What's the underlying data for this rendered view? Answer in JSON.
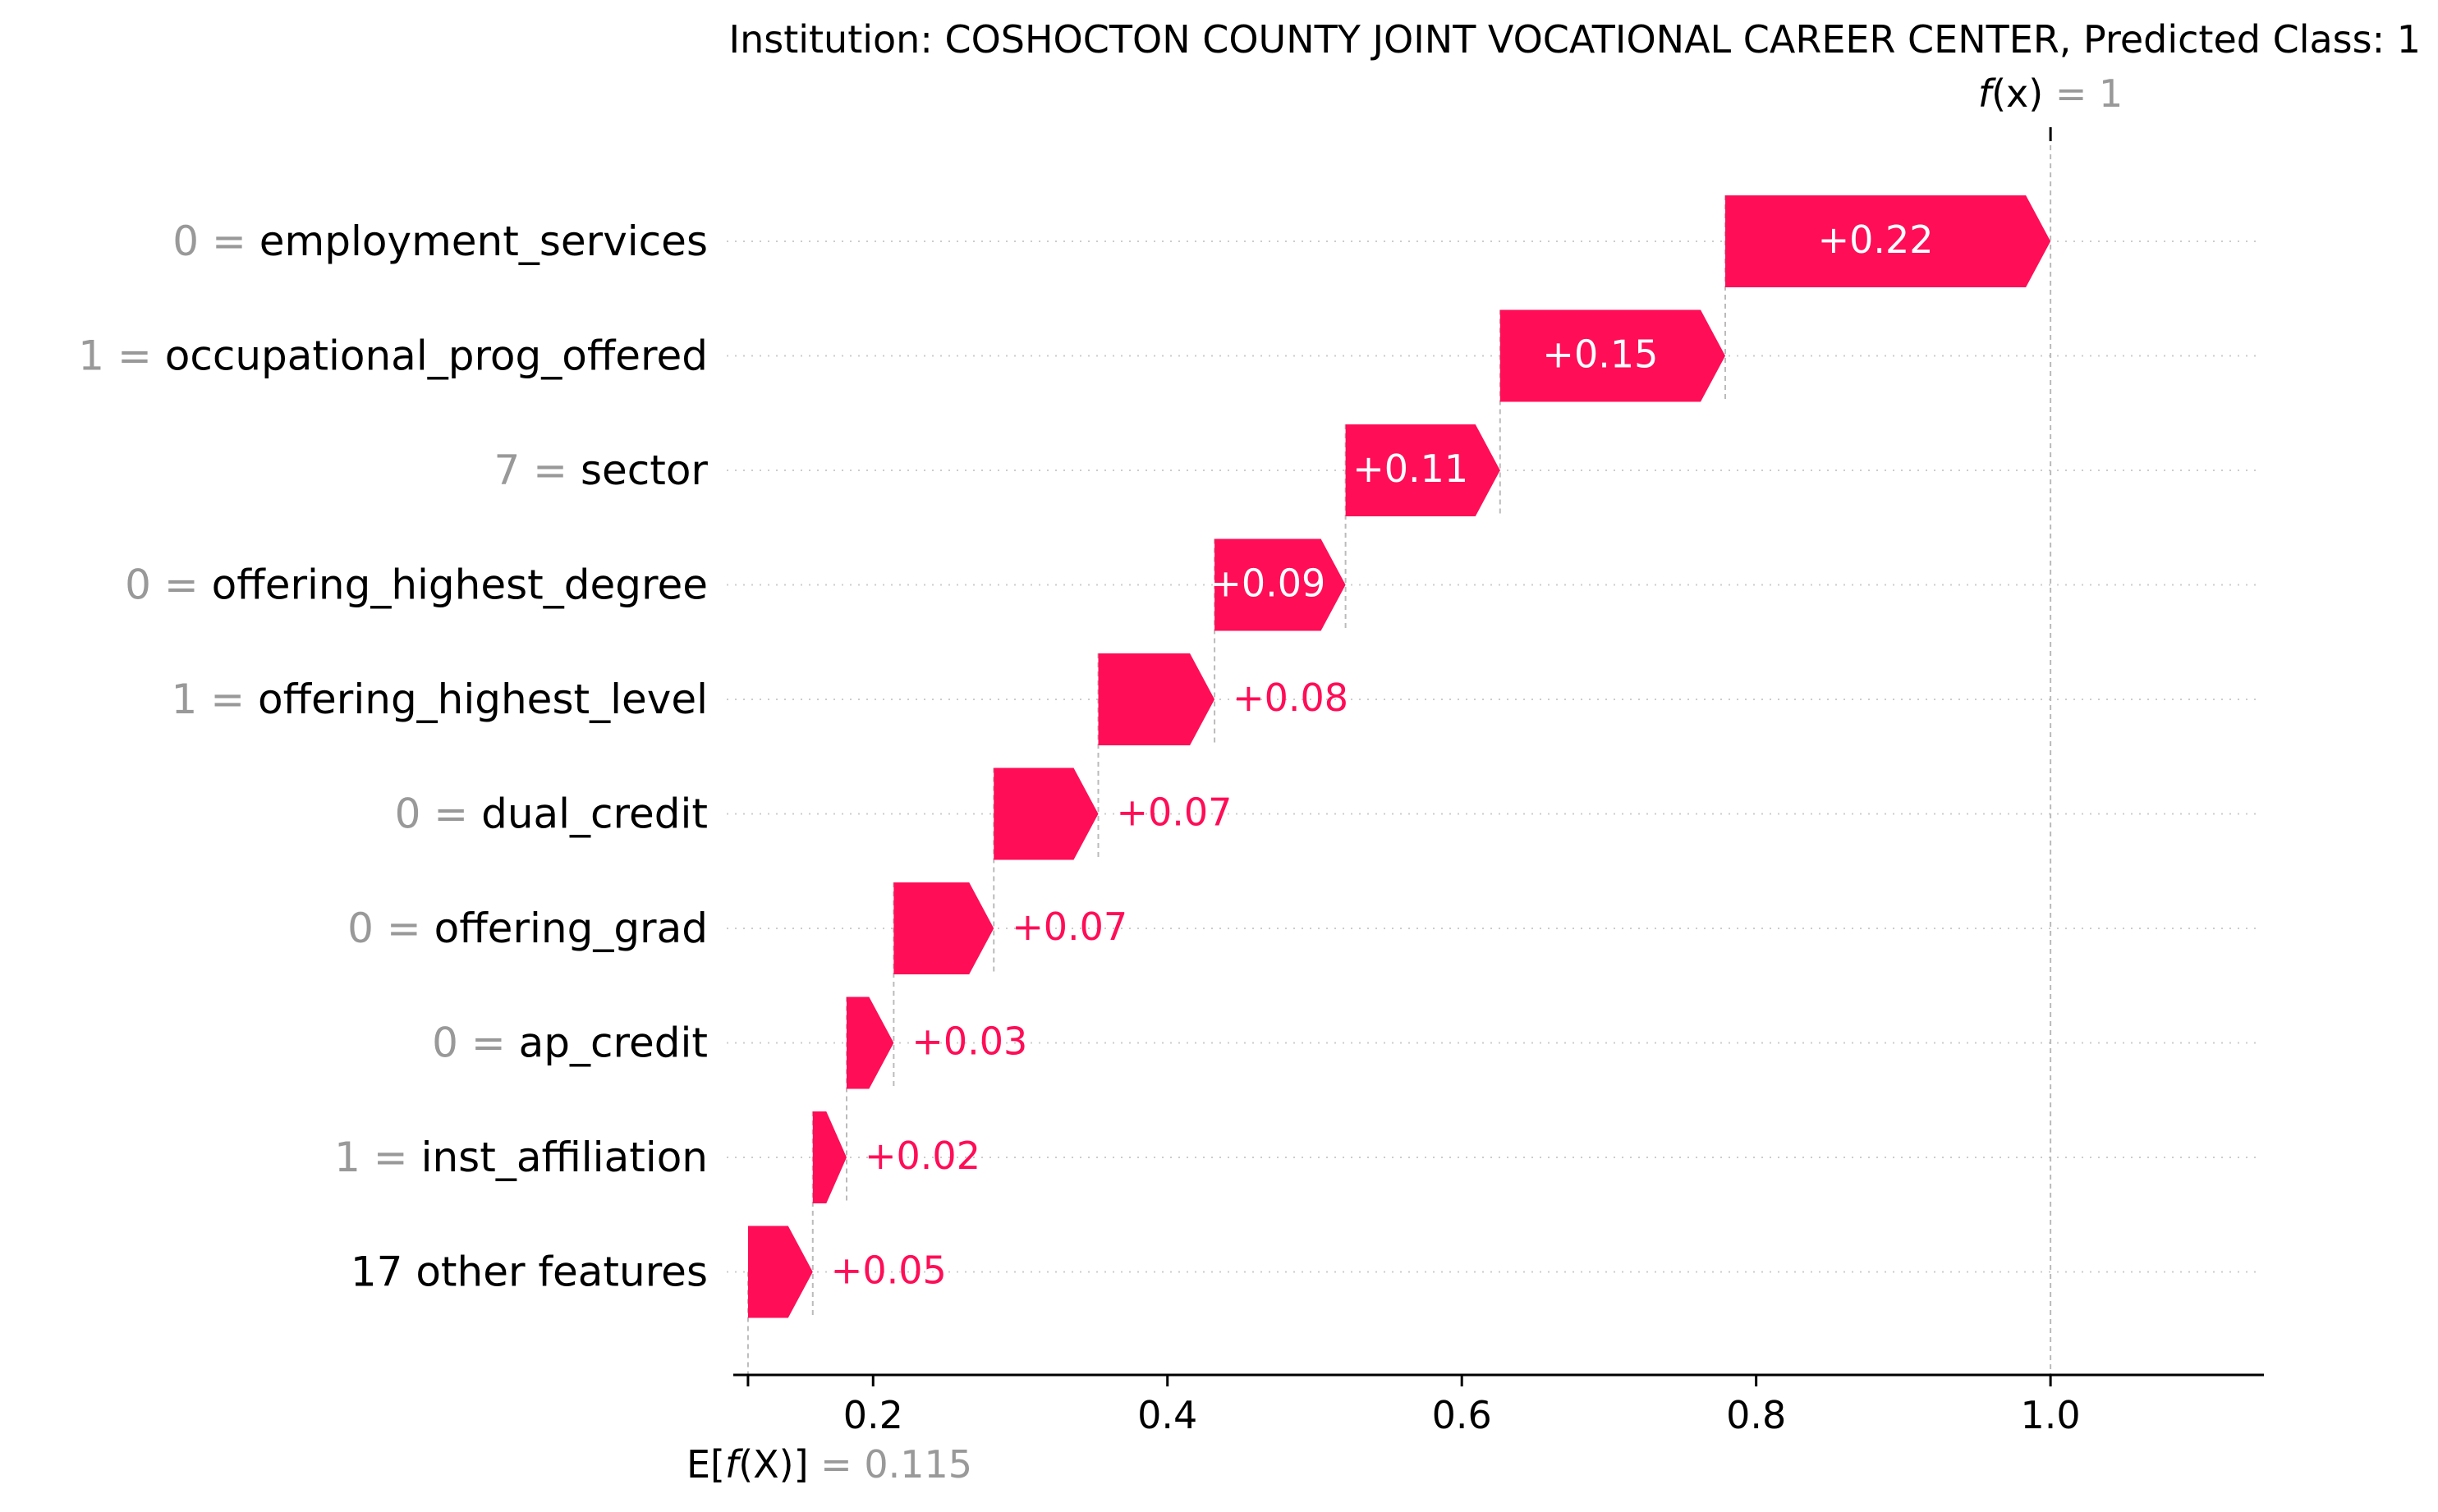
{
  "chart_data": {
    "type": "waterfall",
    "title": "Institution: COSHOCTON COUNTY JOINT VOCATIONAL CAREER CENTER, Predicted Class: 1",
    "fx": {
      "label_italic": "f",
      "label_rest": "(x)",
      "eq": "=",
      "value_text": "1",
      "value": 1.0
    },
    "efx": {
      "label_pre": "E[",
      "label_italic": "f",
      "label_rest": "(X)]",
      "eq": "=",
      "value_text": "0.115",
      "value": 0.115
    },
    "xlim": [
      0.105,
      1.145
    ],
    "xticks": [
      {
        "value": 0.2,
        "label": "0.2"
      },
      {
        "value": 0.4,
        "label": "0.4"
      },
      {
        "value": 0.6,
        "label": "0.6"
      },
      {
        "value": 0.8,
        "label": "0.8"
      },
      {
        "value": 1.0,
        "label": "1.0"
      }
    ],
    "colors": {
      "positive": "#ff0d57",
      "label_value_gray": "#999999",
      "text": "#000000",
      "inside_text": "#ffffff",
      "axis": "#000000",
      "gridline": "#cccccc",
      "connector": "#bbbbbb"
    },
    "features": [
      {
        "value_text": "0",
        "name": "employment_services",
        "start": 0.779,
        "end": 1.0,
        "label": "+0.22",
        "label_inside": true
      },
      {
        "value_text": "1",
        "name": "occupational_prog_offered",
        "start": 0.626,
        "end": 0.779,
        "label": "+0.15",
        "label_inside": true
      },
      {
        "value_text": "7",
        "name": "sector",
        "start": 0.521,
        "end": 0.626,
        "label": "+0.11",
        "label_inside": true
      },
      {
        "value_text": "0",
        "name": "offering_highest_degree",
        "start": 0.432,
        "end": 0.521,
        "label": "+0.09",
        "label_inside": true
      },
      {
        "value_text": "1",
        "name": "offering_highest_level",
        "start": 0.353,
        "end": 0.432,
        "label": "+0.08",
        "label_inside": false
      },
      {
        "value_text": "0",
        "name": "dual_credit",
        "start": 0.282,
        "end": 0.353,
        "label": "+0.07",
        "label_inside": false
      },
      {
        "value_text": "0",
        "name": "offering_grad",
        "start": 0.214,
        "end": 0.282,
        "label": "+0.07",
        "label_inside": false
      },
      {
        "value_text": "0",
        "name": "ap_credit",
        "start": 0.182,
        "end": 0.214,
        "label": "+0.03",
        "label_inside": false
      },
      {
        "value_text": "1",
        "name": "inst_affiliation",
        "start": 0.159,
        "end": 0.182,
        "label": "+0.02",
        "label_inside": false
      },
      {
        "value_text": "",
        "name": "17 other features",
        "start": 0.115,
        "end": 0.159,
        "label": "+0.05",
        "label_inside": false
      }
    ]
  }
}
